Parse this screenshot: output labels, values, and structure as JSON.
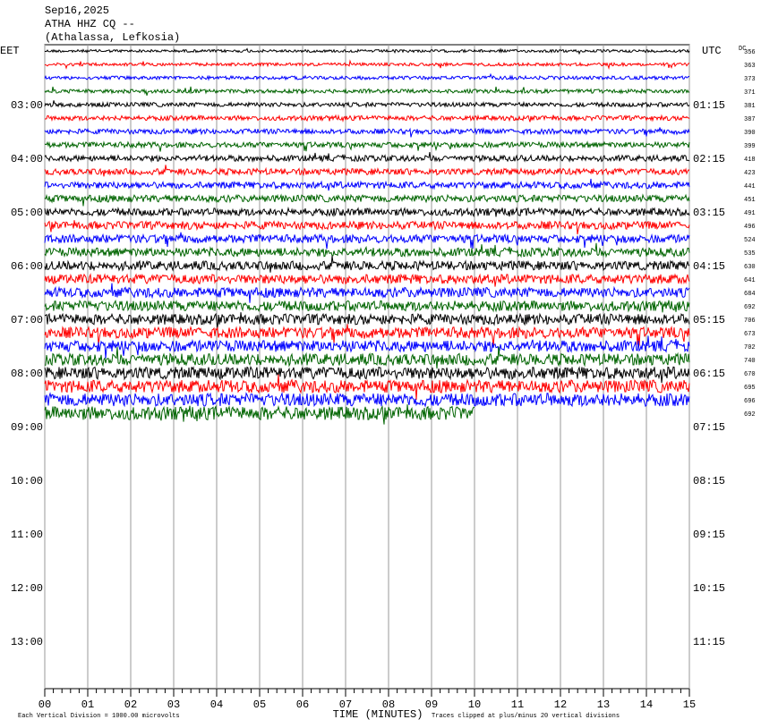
{
  "chart_data": {
    "type": "helicorder",
    "title": [
      "Sep16,2025",
      "ATHA HHZ CQ --",
      "(Athalassa, Lefkosia)"
    ],
    "left_axis_title": "EET",
    "right_axis_title": "UTC",
    "dc_title": "DC",
    "left_labels": [
      "03:00",
      "04:00",
      "05:00",
      "06:00",
      "07:00",
      "08:00",
      "09:00",
      "10:00",
      "11:00",
      "12:00",
      "13:00"
    ],
    "right_labels": [
      "01:15",
      "02:15",
      "03:15",
      "04:15",
      "05:15",
      "06:15",
      "07:15",
      "08:15",
      "09:15",
      "10:15",
      "11:15"
    ],
    "xlabel": "TIME (MINUTES)",
    "xlim": [
      0,
      15
    ],
    "xticks": [
      {
        "value": 0,
        "label": "00"
      },
      {
        "value": 1,
        "label": "01"
      },
      {
        "value": 2,
        "label": "02"
      },
      {
        "value": 3,
        "label": "03"
      },
      {
        "value": 4,
        "label": "04"
      },
      {
        "value": 5,
        "label": "05"
      },
      {
        "value": 6,
        "label": "06"
      },
      {
        "value": 7,
        "label": "07"
      },
      {
        "value": 8,
        "label": "08"
      },
      {
        "value": 9,
        "label": "09"
      },
      15,
      {
        "value": 10,
        "label": "10"
      },
      {
        "value": 11,
        "label": "11"
      },
      {
        "value": 12,
        "label": "12"
      },
      {
        "value": 13,
        "label": "13"
      },
      {
        "value": 14,
        "label": "14"
      }
    ],
    "footer_left": "Each Vertical Division = 1000.00 microvolts",
    "footer_right": "Traces clipped at plus/minus 20 vertical divisions",
    "colors": [
      "#000000",
      "#ff0000",
      "#0000ff",
      "#006400"
    ],
    "series": [
      {
        "dc": 356,
        "end": 15
      },
      {
        "dc": 363,
        "end": 15
      },
      {
        "dc": 373,
        "end": 15
      },
      {
        "dc": 371,
        "end": 15
      },
      {
        "dc": 381,
        "end": 15
      },
      {
        "dc": 387,
        "end": 15
      },
      {
        "dc": 390,
        "end": 15
      },
      {
        "dc": 399,
        "end": 15
      },
      {
        "dc": 418,
        "end": 15
      },
      {
        "dc": 423,
        "end": 15
      },
      {
        "dc": 441,
        "end": 15
      },
      {
        "dc": 451,
        "end": 15
      },
      {
        "dc": 491,
        "end": 15
      },
      {
        "dc": 496,
        "end": 15
      },
      {
        "dc": 524,
        "end": 15
      },
      {
        "dc": 535,
        "end": 15
      },
      {
        "dc": 630,
        "end": 15
      },
      {
        "dc": 641,
        "end": 15
      },
      {
        "dc": 684,
        "end": 15
      },
      {
        "dc": 692,
        "end": 15
      },
      {
        "dc": 706,
        "end": 15
      },
      {
        "dc": 673,
        "end": 15
      },
      {
        "dc": 702,
        "end": 15
      },
      {
        "dc": 740,
        "end": 15
      },
      {
        "dc": 670,
        "end": 15
      },
      {
        "dc": 695,
        "end": 15
      },
      {
        "dc": 696,
        "end": 15
      },
      {
        "dc": 692,
        "end": 10
      }
    ]
  }
}
